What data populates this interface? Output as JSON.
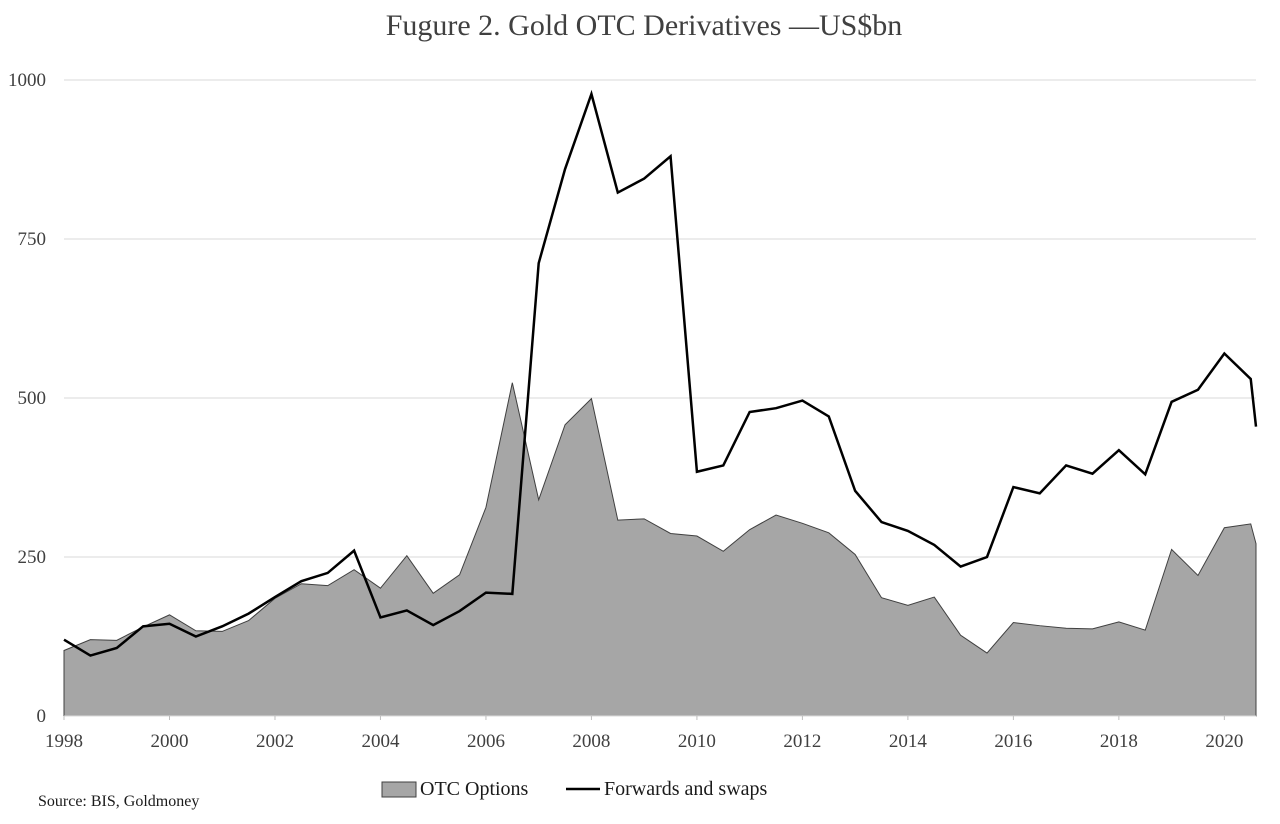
{
  "chart_data": {
    "type": "area",
    "title": "Fugure 2. Gold OTC Derivatives —US$bn",
    "source": "Source: BIS, Goldmoney",
    "xlim": [
      1998,
      2020.6
    ],
    "ylim": [
      0,
      1000
    ],
    "y_ticks": [
      0,
      250,
      500,
      750,
      1000
    ],
    "x_ticks": [
      1998,
      2000,
      2002,
      2004,
      2006,
      2008,
      2010,
      2012,
      2014,
      2016,
      2018,
      2020
    ],
    "grid": true,
    "legend_position": "bottom",
    "x": [
      1998.0,
      1998.5,
      1999.0,
      1999.5,
      2000.0,
      2000.5,
      2001.0,
      2001.5,
      2002.0,
      2002.5,
      2003.0,
      2003.5,
      2004.0,
      2004.5,
      2005.0,
      2005.5,
      2006.0,
      2006.5,
      2007.0,
      2007.5,
      2008.0,
      2008.5,
      2009.0,
      2009.5,
      2010.0,
      2010.5,
      2011.0,
      2011.5,
      2012.0,
      2012.5,
      2013.0,
      2013.5,
      2014.0,
      2014.5,
      2015.0,
      2015.5,
      2016.0,
      2016.5,
      2017.0,
      2017.5,
      2018.0,
      2018.5,
      2019.0,
      2019.5,
      2020.0,
      2020.5,
      2020.6
    ],
    "series": [
      {
        "name": "OTC Options",
        "style": "area",
        "color": "#a6a6a6",
        "values": [
          103,
          120,
          119,
          140,
          159,
          134,
          133,
          150,
          185,
          208,
          205,
          230,
          201,
          252,
          193,
          222,
          328,
          524,
          340,
          458,
          499,
          308,
          310,
          287,
          283,
          259,
          293,
          316,
          303,
          288,
          254,
          186,
          174,
          187,
          127,
          99,
          147,
          142,
          138,
          137,
          148,
          135,
          262,
          221,
          296,
          302,
          271
        ]
      },
      {
        "name": "Forwards and swaps",
        "style": "line",
        "color": "#000000",
        "values": [
          120,
          95,
          107,
          141,
          145,
          125,
          141,
          161,
          187,
          212,
          225,
          260,
          155,
          166,
          143,
          165,
          194,
          192,
          712,
          860,
          978,
          823,
          845,
          880,
          384,
          394,
          478,
          484,
          496,
          471,
          354,
          305,
          291,
          269,
          235,
          250,
          360,
          350,
          394,
          381,
          418,
          380,
          494,
          513,
          570,
          530,
          455
        ]
      }
    ]
  }
}
